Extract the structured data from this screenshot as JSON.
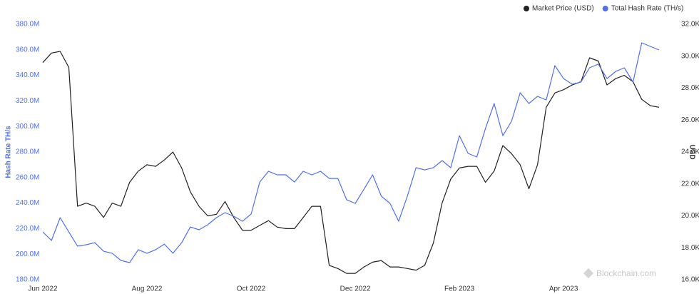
{
  "chart_data": {
    "type": "line",
    "legend_position": "top-right",
    "y_label": "Hash Rate TH/s",
    "y2_label": "USD",
    "watermark": "Blockchain.com",
    "grid": false,
    "categories": [
      "Jun 2022",
      null,
      null,
      null,
      null,
      null,
      null,
      null,
      null,
      null,
      null,
      null,
      "Aug 2022",
      null,
      null,
      null,
      null,
      null,
      null,
      null,
      null,
      null,
      null,
      null,
      "Oct 2022",
      null,
      null,
      null,
      null,
      null,
      null,
      null,
      null,
      null,
      null,
      null,
      "Dec 2022",
      null,
      null,
      null,
      null,
      null,
      null,
      null,
      null,
      null,
      null,
      null,
      "Feb 2023",
      null,
      null,
      null,
      null,
      null,
      null,
      null,
      null,
      null,
      null,
      null,
      "Apr 2023",
      null,
      null,
      null,
      null,
      null,
      null,
      null,
      null,
      null,
      null,
      null
    ],
    "ylim": [
      180000000,
      380000000
    ],
    "yticks": [
      {
        "value": 180000000,
        "label": "180.0M"
      },
      {
        "value": 200000000,
        "label": "200.0M"
      },
      {
        "value": 220000000,
        "label": "220.0M"
      },
      {
        "value": 240000000,
        "label": "240.0M"
      },
      {
        "value": 260000000,
        "label": "260.0M"
      },
      {
        "value": 280000000,
        "label": "280.0M"
      },
      {
        "value": 300000000,
        "label": "300.0M"
      },
      {
        "value": 320000000,
        "label": "320.0M"
      },
      {
        "value": 340000000,
        "label": "340.0M"
      },
      {
        "value": 360000000,
        "label": "360.0M"
      },
      {
        "value": 380000000,
        "label": "380.0M"
      }
    ],
    "y2lim": [
      16000,
      32000
    ],
    "y2ticks": [
      {
        "value": 16000,
        "label": "16.0K"
      },
      {
        "value": 18000,
        "label": "18.0K"
      },
      {
        "value": 20000,
        "label": "20.0K"
      },
      {
        "value": 22000,
        "label": "22.0K"
      },
      {
        "value": 24000,
        "label": "24.0K"
      },
      {
        "value": 26000,
        "label": "26.0K"
      },
      {
        "value": 28000,
        "label": "28.0K"
      },
      {
        "value": 30000,
        "label": "30.0K"
      },
      {
        "value": 32000,
        "label": "32.0K"
      }
    ],
    "series": [
      {
        "name": "Market Price (USD)",
        "color": "#222222",
        "axis": "y2",
        "values": [
          29600,
          30200,
          30300,
          29300,
          20600,
          20800,
          20600,
          19900,
          20800,
          20600,
          22100,
          22800,
          23200,
          23100,
          23500,
          24000,
          23000,
          21500,
          20600,
          20000,
          20100,
          20900,
          19900,
          19100,
          19100,
          19400,
          19700,
          19300,
          19200,
          19200,
          19900,
          20600,
          20600,
          16900,
          16700,
          16400,
          16400,
          16800,
          17100,
          17200,
          16800,
          16800,
          16700,
          16600,
          16900,
          18300,
          20800,
          22300,
          23000,
          23100,
          23100,
          22100,
          22800,
          24400,
          23900,
          23200,
          21700,
          23200,
          26800,
          27700,
          27900,
          28200,
          28400,
          29900,
          29700,
          28200,
          28600,
          28800,
          28400,
          27300,
          26900,
          26800
        ]
      },
      {
        "name": "Total Hash Rate (TH/s)",
        "color": "#4f6ff0",
        "values": [
          217400000,
          210700000,
          228600000,
          217400000,
          206300000,
          207400000,
          209000000,
          202300000,
          200700000,
          195100000,
          193400000,
          203500000,
          200700000,
          203500000,
          207900000,
          200700000,
          209000000,
          221300000,
          219100000,
          223000000,
          228600000,
          232500000,
          229700000,
          225800000,
          231400000,
          256500000,
          264900000,
          262100000,
          262100000,
          256500000,
          264900000,
          262100000,
          264900000,
          259300000,
          259300000,
          242600000,
          239800000,
          250900000,
          262100000,
          245400000,
          239800000,
          225800000,
          245400000,
          267700000,
          266000000,
          267700000,
          273300000,
          267700000,
          292800000,
          278900000,
          276100000,
          298400000,
          318000000,
          292800000,
          304000000,
          326400000,
          318000000,
          323600000,
          320800000,
          347600000,
          337500000,
          333100000,
          334800000,
          345900000,
          348700000,
          337500000,
          343100000,
          345900000,
          334800000,
          365500000,
          362700000,
          359900000
        ]
      }
    ]
  }
}
